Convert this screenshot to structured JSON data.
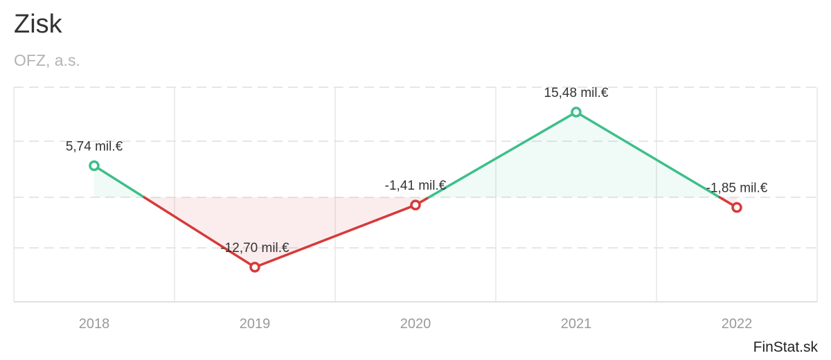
{
  "title": "Zisk",
  "subtitle": "OFZ, a.s.",
  "credit": "FinStat.sk",
  "colors": {
    "positive": "#3dbf8a",
    "negative": "#d63a3a",
    "grid": "#e6e6e6",
    "axis": "#e0e0e0"
  },
  "chart_data": {
    "type": "line",
    "categories": [
      "2018",
      "2019",
      "2020",
      "2021",
      "2022"
    ],
    "series": [
      {
        "values": [
          5.74,
          -12.7,
          -1.41,
          15.48,
          -1.85
        ],
        "labels": [
          "5,74 mil.€",
          "-12,70 mil.€",
          "-1,41 mil.€",
          "15,48 mil.€",
          "-1,85 mil.€"
        ]
      }
    ],
    "ylim": [
      -19,
      20
    ],
    "grid": true,
    "area_fill_to_zero": true
  }
}
